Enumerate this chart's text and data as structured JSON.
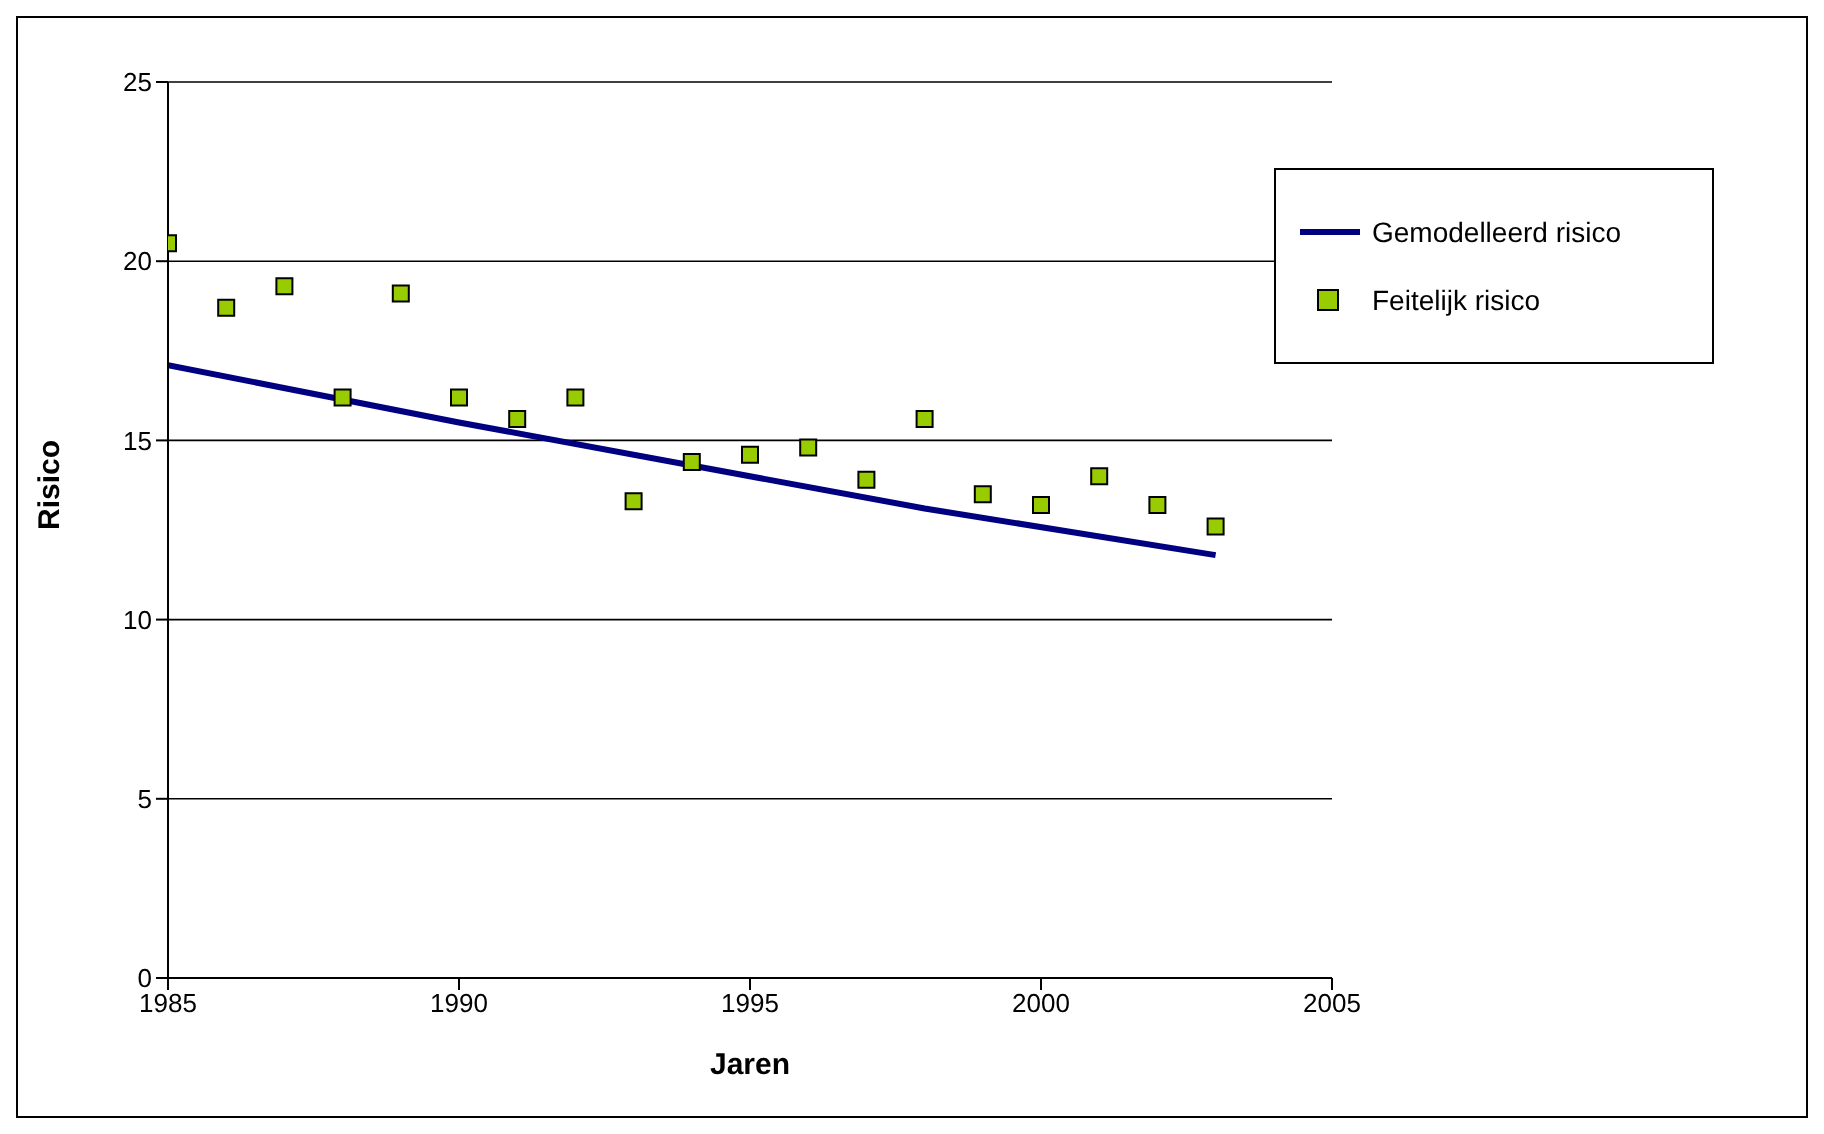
{
  "chart_data": {
    "type": "scatter",
    "xlabel": "Jaren",
    "ylabel": "Risico",
    "xlim": [
      1985,
      2005
    ],
    "xticks": [
      1985,
      1990,
      1995,
      2000,
      2005
    ],
    "ylim": [
      0,
      25
    ],
    "yticks": [
      0,
      5,
      10,
      15,
      20,
      25
    ],
    "grid": "y",
    "legend": "top right",
    "marker": "square",
    "series": [
      {
        "name": "Gemodelleerd risico",
        "type": "line",
        "color": "#000080",
        "line_style": "solid",
        "marker": "none",
        "x": [
          1985,
          1990,
          1994,
          1998,
          2003
        ],
        "values": [
          17.1,
          15.5,
          14.3,
          13.1,
          11.8
        ]
      },
      {
        "name": "Feitelijk risico",
        "color": "#99cc00",
        "x": [
          1985,
          1986,
          1987,
          1988,
          1989,
          1990,
          1991,
          1992,
          1993,
          1994,
          1995,
          1996,
          1997,
          1998,
          1999,
          2000,
          2001,
          2002,
          2003
        ],
        "values": [
          20.5,
          18.7,
          19.3,
          16.2,
          19.1,
          16.2,
          15.6,
          16.2,
          13.3,
          14.4,
          14.6,
          14.8,
          13.9,
          15.6,
          13.5,
          13.2,
          14.0,
          13.2,
          12.6
        ]
      }
    ]
  }
}
